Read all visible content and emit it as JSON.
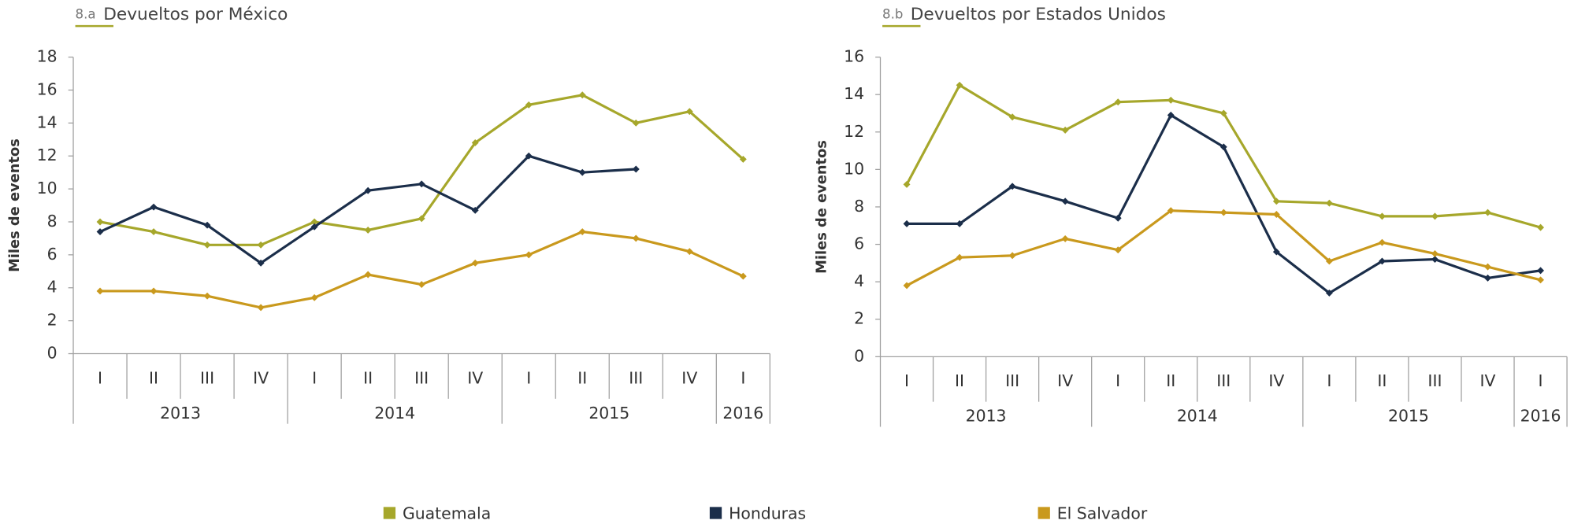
{
  "chart_data": [
    {
      "type": "line",
      "title_number": "8.a",
      "title": "Devueltos por México",
      "y_label": "Miles de eventos",
      "categories": [
        "I",
        "II",
        "III",
        "IV",
        "I",
        "II",
        "III",
        "IV",
        "I",
        "II",
        "III",
        "IV",
        "I"
      ],
      "years": [
        "2013",
        "2014",
        "2015",
        "2016"
      ],
      "ylim": [
        0,
        18
      ],
      "yticks": [
        0,
        2,
        4,
        6,
        8,
        10,
        12,
        14,
        16,
        18
      ],
      "series": [
        {
          "name": "Guatemala",
          "color": "#a6a72b",
          "values": [
            8.0,
            7.4,
            6.6,
            6.6,
            8.0,
            7.5,
            8.2,
            12.8,
            15.1,
            15.7,
            14.0,
            14.7,
            11.8
          ]
        },
        {
          "name": "Honduras",
          "color": "#1b2e4a",
          "values": [
            7.4,
            8.9,
            7.8,
            5.5,
            7.7,
            9.9,
            10.3,
            8.7,
            12.0,
            11.0,
            11.2,
            null,
            null
          ]
        },
        {
          "name": "El Salvador",
          "color": "#c9991d",
          "values": [
            3.8,
            3.8,
            3.5,
            2.8,
            3.4,
            4.8,
            4.2,
            5.5,
            6.0,
            7.4,
            7.0,
            6.2,
            4.7
          ]
        }
      ]
    },
    {
      "type": "line",
      "title_number": "8.b",
      "title": "Devueltos por Estados Unidos",
      "y_label": "Miles de eventos",
      "categories": [
        "I",
        "II",
        "III",
        "IV",
        "I",
        "II",
        "III",
        "IV",
        "I",
        "II",
        "III",
        "IV",
        "I"
      ],
      "years": [
        "2013",
        "2014",
        "2015",
        "2016"
      ],
      "ylim": [
        0,
        16
      ],
      "yticks": [
        0,
        2,
        4,
        6,
        8,
        10,
        12,
        14,
        16
      ],
      "series": [
        {
          "name": "Guatemala",
          "color": "#a6a72b",
          "values": [
            9.2,
            14.5,
            12.8,
            12.1,
            13.6,
            13.7,
            13.0,
            8.3,
            8.2,
            7.5,
            7.5,
            7.7,
            6.9
          ]
        },
        {
          "name": "Honduras",
          "color": "#1b2e4a",
          "values": [
            7.1,
            7.1,
            9.1,
            8.3,
            7.4,
            12.9,
            11.2,
            5.6,
            3.4,
            5.1,
            5.2,
            4.2,
            4.6
          ]
        },
        {
          "name": "El Salvador",
          "color": "#c9991d",
          "values": [
            3.8,
            5.3,
            5.4,
            6.3,
            5.7,
            7.8,
            7.7,
            7.6,
            5.1,
            6.1,
            5.5,
            4.8,
            4.1
          ]
        }
      ]
    }
  ]
}
